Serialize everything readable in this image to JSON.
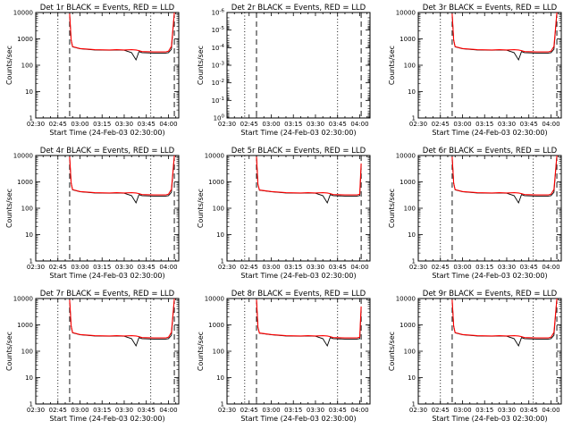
{
  "chart_data": [
    {
      "type": "line",
      "title": "Det 1r BLACK = Events, RED = LLD",
      "xlabel": "Start Time (24-Feb-03 02:30:00)",
      "ylabel": "Counts/sec",
      "yscale": "log",
      "ylim": [
        1,
        10000
      ],
      "xlim": [
        "02:30",
        "04:07"
      ],
      "xticks": [
        "02:30",
        "02:45",
        "03:00",
        "03:15",
        "03:30",
        "03:45",
        "04:00"
      ],
      "yticks": [
        "1",
        "10",
        "100",
        "1000",
        "10000"
      ],
      "vlines_dotted": [
        "02:45",
        "03:48"
      ],
      "vlines_dashed": [
        "02:53",
        "04:04"
      ],
      "series": [
        {
          "color": "#000000",
          "x": [
            "02:53",
            "02:54",
            "02:55",
            "03:00",
            "03:10",
            "03:20",
            "03:25",
            "03:30",
            "03:35",
            "03:38",
            "03:40",
            "03:42",
            "03:50",
            "03:58",
            "04:00",
            "04:02",
            "04:04"
          ],
          "y": [
            9000,
            900,
            500,
            420,
            380,
            370,
            380,
            370,
            300,
            160,
            330,
            300,
            290,
            290,
            300,
            400,
            10000
          ]
        },
        {
          "color": "#ff0000",
          "x": [
            "02:53",
            "02:54",
            "02:55",
            "03:00",
            "03:10",
            "03:20",
            "03:25",
            "03:30",
            "03:35",
            "03:38",
            "03:40",
            "03:42",
            "03:50",
            "03:58",
            "04:00",
            "04:02",
            "04:04"
          ],
          "y": [
            9000,
            900,
            510,
            430,
            390,
            380,
            390,
            380,
            390,
            380,
            360,
            330,
            320,
            320,
            340,
            520,
            10000
          ]
        }
      ]
    },
    {
      "type": "line",
      "title": "Det 2r BLACK = Events, RED = LLD",
      "xlabel": "Start Time (24-Feb-03 02:30:00)",
      "ylabel": "Counts/sec",
      "yscale": "log",
      "ylim": [
        1,
        1e-06
      ],
      "xlim": [
        "02:30",
        "04:07"
      ],
      "xticks": [
        "02:30",
        "02:45",
        "03:00",
        "03:15",
        "03:30",
        "03:45",
        "04:00"
      ],
      "yticks": [
        "10^0",
        "10^-1",
        "10^-2",
        "10^-3",
        "10^-4",
        "10^-5",
        "10^-6"
      ],
      "vlines_dotted": [
        "02:42",
        "03:45"
      ],
      "vlines_dashed": [
        "02:50",
        "04:01"
      ],
      "series": []
    },
    {
      "type": "line",
      "title": "Det 3r BLACK = Events, RED = LLD",
      "xlabel": "Start Time (24-Feb-03 02:30:00)",
      "ylabel": "Counts/sec",
      "yscale": "log",
      "ylim": [
        1,
        10000
      ],
      "xlim": [
        "02:30",
        "04:07"
      ],
      "xticks": [
        "02:30",
        "02:45",
        "03:00",
        "03:15",
        "03:30",
        "03:45",
        "04:00"
      ],
      "yticks": [
        "1",
        "10",
        "100",
        "1000",
        "10000"
      ],
      "vlines_dotted": [
        "02:45",
        "03:48"
      ],
      "vlines_dashed": [
        "02:53",
        "04:04"
      ],
      "series": [
        {
          "color": "#000000",
          "x": [
            "02:53",
            "02:54",
            "02:55",
            "03:00",
            "03:10",
            "03:20",
            "03:25",
            "03:30",
            "03:35",
            "03:38",
            "03:40",
            "03:42",
            "03:50",
            "03:58",
            "04:00",
            "04:02",
            "04:04"
          ],
          "y": [
            9000,
            900,
            500,
            420,
            380,
            370,
            380,
            370,
            300,
            160,
            330,
            300,
            290,
            290,
            300,
            400,
            10000
          ]
        },
        {
          "color": "#ff0000",
          "x": [
            "02:53",
            "02:54",
            "02:55",
            "03:00",
            "03:10",
            "03:20",
            "03:25",
            "03:30",
            "03:35",
            "03:38",
            "03:40",
            "03:42",
            "03:50",
            "03:58",
            "04:00",
            "04:02",
            "04:04"
          ],
          "y": [
            9000,
            900,
            510,
            430,
            390,
            380,
            390,
            380,
            390,
            380,
            360,
            330,
            320,
            320,
            340,
            520,
            10000
          ]
        }
      ]
    },
    {
      "type": "line",
      "title": "Det 4r BLACK = Events, RED = LLD",
      "xlabel": "Start Time (24-Feb-03 02:30:00)",
      "ylabel": "Counts/sec",
      "yscale": "log",
      "ylim": [
        1,
        10000
      ],
      "xlim": [
        "02:30",
        "04:07"
      ],
      "xticks": [
        "02:30",
        "02:45",
        "03:00",
        "03:15",
        "03:30",
        "03:45",
        "04:00"
      ],
      "yticks": [
        "1",
        "10",
        "100",
        "1000",
        "10000"
      ],
      "vlines_dotted": [
        "02:45",
        "03:48"
      ],
      "vlines_dashed": [
        "02:53",
        "04:04"
      ],
      "series": [
        {
          "color": "#000000",
          "x": [
            "02:53",
            "02:54",
            "02:55",
            "03:00",
            "03:10",
            "03:20",
            "03:25",
            "03:30",
            "03:35",
            "03:38",
            "03:40",
            "03:42",
            "03:50",
            "03:58",
            "04:00",
            "04:02",
            "04:04"
          ],
          "y": [
            9000,
            900,
            500,
            420,
            380,
            370,
            380,
            370,
            300,
            160,
            330,
            300,
            290,
            290,
            300,
            400,
            10000
          ]
        },
        {
          "color": "#ff0000",
          "x": [
            "02:53",
            "02:54",
            "02:55",
            "03:00",
            "03:10",
            "03:20",
            "03:25",
            "03:30",
            "03:35",
            "03:38",
            "03:40",
            "03:42",
            "03:50",
            "03:58",
            "04:00",
            "04:02",
            "04:04"
          ],
          "y": [
            9000,
            900,
            510,
            430,
            390,
            380,
            390,
            380,
            390,
            380,
            360,
            330,
            320,
            320,
            340,
            520,
            10000
          ]
        }
      ]
    },
    {
      "type": "line",
      "title": "Det 5r BLACK = Events, RED = LLD",
      "xlabel": "Start Time (24-Feb-03 02:30:00)",
      "ylabel": "Counts/sec",
      "yscale": "log",
      "ylim": [
        1,
        10000
      ],
      "xlim": [
        "02:30",
        "04:07"
      ],
      "xticks": [
        "02:30",
        "02:45",
        "03:00",
        "03:15",
        "03:30",
        "03:45",
        "04:00"
      ],
      "yticks": [
        "1",
        "10",
        "100",
        "1000",
        "10000"
      ],
      "vlines_dotted": [
        "02:42",
        "03:45"
      ],
      "vlines_dashed": [
        "02:50",
        "04:01"
      ],
      "series": [
        {
          "color": "#000000",
          "x": [
            "02:50",
            "02:51",
            "02:52",
            "03:00",
            "03:10",
            "03:20",
            "03:25",
            "03:30",
            "03:35",
            "03:38",
            "03:40",
            "03:42",
            "03:50",
            "03:58",
            "04:00",
            "04:01"
          ],
          "y": [
            9000,
            800,
            480,
            420,
            380,
            370,
            380,
            370,
            300,
            160,
            330,
            300,
            290,
            290,
            300,
            4000
          ]
        },
        {
          "color": "#ff0000",
          "x": [
            "02:50",
            "02:51",
            "02:52",
            "03:00",
            "03:10",
            "03:20",
            "03:25",
            "03:30",
            "03:35",
            "03:38",
            "03:40",
            "03:42",
            "03:50",
            "03:58",
            "04:00",
            "04:01"
          ],
          "y": [
            9000,
            800,
            490,
            430,
            390,
            380,
            390,
            380,
            390,
            380,
            360,
            330,
            320,
            320,
            340,
            5000
          ]
        }
      ]
    },
    {
      "type": "line",
      "title": "Det 6r BLACK = Events, RED = LLD",
      "xlabel": "Start Time (24-Feb-03 02:30:00)",
      "ylabel": "Counts/sec",
      "yscale": "log",
      "ylim": [
        1,
        10000
      ],
      "xlim": [
        "02:30",
        "04:07"
      ],
      "xticks": [
        "02:30",
        "02:45",
        "03:00",
        "03:15",
        "03:30",
        "03:45",
        "04:00"
      ],
      "yticks": [
        "1",
        "10",
        "100",
        "1000",
        "10000"
      ],
      "vlines_dotted": [
        "02:45",
        "03:48"
      ],
      "vlines_dashed": [
        "02:53",
        "04:04"
      ],
      "series": [
        {
          "color": "#000000",
          "x": [
            "02:53",
            "02:54",
            "02:55",
            "03:00",
            "03:10",
            "03:20",
            "03:25",
            "03:30",
            "03:35",
            "03:38",
            "03:40",
            "03:42",
            "03:50",
            "03:58",
            "04:00",
            "04:02",
            "04:04"
          ],
          "y": [
            9000,
            900,
            500,
            420,
            380,
            370,
            380,
            370,
            300,
            160,
            330,
            300,
            290,
            290,
            300,
            400,
            10000
          ]
        },
        {
          "color": "#ff0000",
          "x": [
            "02:53",
            "02:54",
            "02:55",
            "03:00",
            "03:10",
            "03:20",
            "03:25",
            "03:30",
            "03:35",
            "03:38",
            "03:40",
            "03:42",
            "03:50",
            "03:58",
            "04:00",
            "04:02",
            "04:04"
          ],
          "y": [
            9000,
            900,
            510,
            430,
            390,
            380,
            390,
            380,
            390,
            380,
            360,
            330,
            320,
            320,
            340,
            520,
            10000
          ]
        }
      ]
    },
    {
      "type": "line",
      "title": "Det 7r BLACK = Events, RED = LLD",
      "xlabel": "Start Time (24-Feb-03 02:30:00)",
      "ylabel": "Counts/sec",
      "yscale": "log",
      "ylim": [
        1,
        10000
      ],
      "xlim": [
        "02:30",
        "04:07"
      ],
      "xticks": [
        "02:30",
        "02:45",
        "03:00",
        "03:15",
        "03:30",
        "03:45",
        "04:00"
      ],
      "yticks": [
        "1",
        "10",
        "100",
        "1000",
        "10000"
      ],
      "vlines_dotted": [
        "02:45",
        "03:48"
      ],
      "vlines_dashed": [
        "02:53",
        "04:04"
      ],
      "series": [
        {
          "color": "#000000",
          "x": [
            "02:53",
            "02:54",
            "02:55",
            "03:00",
            "03:10",
            "03:20",
            "03:25",
            "03:30",
            "03:35",
            "03:38",
            "03:40",
            "03:42",
            "03:50",
            "03:58",
            "04:00",
            "04:02",
            "04:04"
          ],
          "y": [
            9000,
            900,
            500,
            420,
            380,
            370,
            380,
            370,
            300,
            160,
            330,
            300,
            290,
            290,
            300,
            400,
            10000
          ]
        },
        {
          "color": "#ff0000",
          "x": [
            "02:53",
            "02:54",
            "02:55",
            "03:00",
            "03:10",
            "03:20",
            "03:25",
            "03:30",
            "03:35",
            "03:38",
            "03:40",
            "03:42",
            "03:50",
            "03:58",
            "04:00",
            "04:02",
            "04:04"
          ],
          "y": [
            9000,
            900,
            510,
            430,
            390,
            380,
            390,
            380,
            390,
            380,
            360,
            330,
            320,
            320,
            340,
            520,
            10000
          ]
        }
      ]
    },
    {
      "type": "line",
      "title": "Det 8r BLACK = Events, RED = LLD",
      "xlabel": "Start Time (24-Feb-03 02:30:00)",
      "ylabel": "Counts/sec",
      "yscale": "log",
      "ylim": [
        1,
        10000
      ],
      "xlim": [
        "02:30",
        "04:07"
      ],
      "xticks": [
        "02:30",
        "02:45",
        "03:00",
        "03:15",
        "03:30",
        "03:45",
        "04:00"
      ],
      "yticks": [
        "1",
        "10",
        "100",
        "1000",
        "10000"
      ],
      "vlines_dotted": [
        "02:42",
        "03:45"
      ],
      "vlines_dashed": [
        "02:50",
        "04:01"
      ],
      "series": [
        {
          "color": "#000000",
          "x": [
            "02:50",
            "02:51",
            "02:52",
            "03:00",
            "03:10",
            "03:20",
            "03:25",
            "03:30",
            "03:35",
            "03:38",
            "03:40",
            "03:42",
            "03:50",
            "03:58",
            "04:00",
            "04:01"
          ],
          "y": [
            9000,
            800,
            480,
            420,
            380,
            370,
            380,
            370,
            300,
            160,
            330,
            300,
            290,
            290,
            300,
            4000
          ]
        },
        {
          "color": "#ff0000",
          "x": [
            "02:50",
            "02:51",
            "02:52",
            "03:00",
            "03:10",
            "03:20",
            "03:25",
            "03:30",
            "03:35",
            "03:38",
            "03:40",
            "03:42",
            "03:50",
            "03:58",
            "04:00",
            "04:01"
          ],
          "y": [
            9000,
            800,
            490,
            430,
            390,
            380,
            390,
            380,
            390,
            380,
            360,
            330,
            320,
            320,
            340,
            5000
          ]
        }
      ]
    },
    {
      "type": "line",
      "title": "Det 9r BLACK = Events, RED = LLD",
      "xlabel": "Start Time (24-Feb-03 02:30:00)",
      "ylabel": "Counts/sec",
      "yscale": "log",
      "ylim": [
        1,
        10000
      ],
      "xlim": [
        "02:30",
        "04:07"
      ],
      "xticks": [
        "02:30",
        "02:45",
        "03:00",
        "03:15",
        "03:30",
        "03:45",
        "04:00"
      ],
      "yticks": [
        "1",
        "10",
        "100",
        "1000",
        "10000"
      ],
      "vlines_dotted": [
        "02:45",
        "03:48"
      ],
      "vlines_dashed": [
        "02:53",
        "04:04"
      ],
      "series": [
        {
          "color": "#000000",
          "x": [
            "02:53",
            "02:54",
            "02:55",
            "03:00",
            "03:10",
            "03:20",
            "03:25",
            "03:30",
            "03:35",
            "03:38",
            "03:40",
            "03:42",
            "03:50",
            "03:58",
            "04:00",
            "04:02",
            "04:04"
          ],
          "y": [
            9000,
            900,
            500,
            420,
            380,
            370,
            380,
            370,
            300,
            160,
            330,
            300,
            290,
            290,
            300,
            400,
            10000
          ]
        },
        {
          "color": "#ff0000",
          "x": [
            "02:53",
            "02:54",
            "02:55",
            "03:00",
            "03:10",
            "03:20",
            "03:25",
            "03:30",
            "03:35",
            "03:38",
            "03:40",
            "03:42",
            "03:50",
            "03:58",
            "04:00",
            "04:02",
            "04:04"
          ],
          "y": [
            9000,
            900,
            510,
            430,
            390,
            380,
            390,
            380,
            390,
            380,
            360,
            330,
            320,
            320,
            340,
            520,
            10000
          ]
        }
      ]
    }
  ]
}
